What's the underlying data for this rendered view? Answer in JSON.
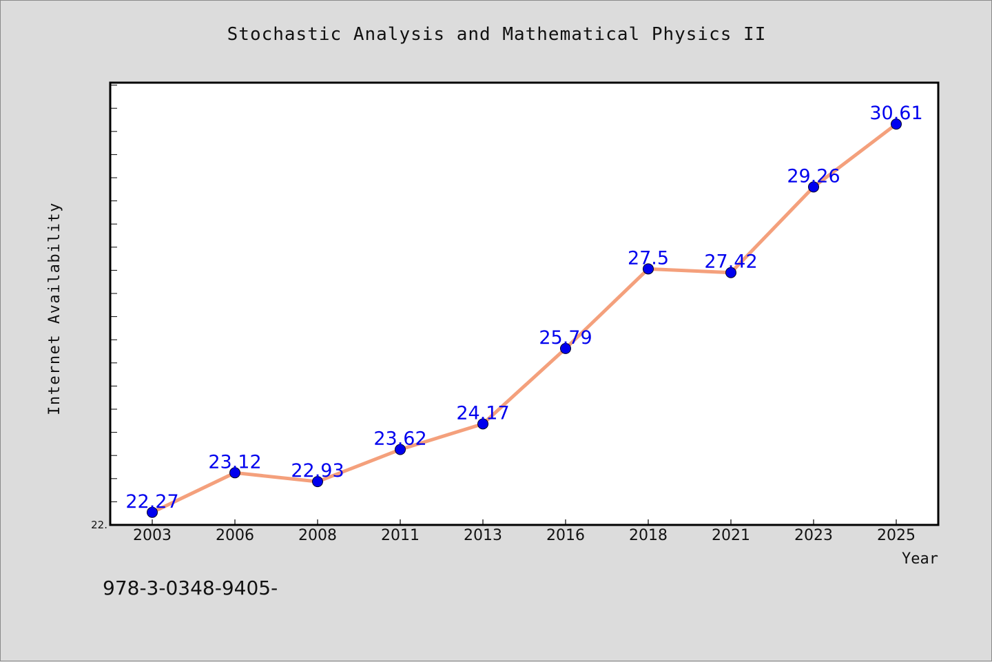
{
  "chart_data": {
    "type": "line",
    "title": "Stochastic Analysis and Mathematical Physics II",
    "xlabel": "Year",
    "ylabel": "Internet Availability",
    "categories": [
      "2003",
      "2006",
      "2008",
      "2011",
      "2013",
      "2016",
      "2018",
      "2021",
      "2023",
      "2025"
    ],
    "series": [
      {
        "values": [
          22.27,
          23.12,
          22.93,
          23.62,
          24.17,
          25.79,
          27.5,
          27.42,
          29.26,
          30.61
        ],
        "data_labels": [
          "22.27",
          "23.12",
          "22.93",
          "23.62",
          "24.17",
          "25.79",
          "27.5",
          "27.42",
          "29.26",
          "30.61"
        ],
        "line_color": "#f4a07c",
        "marker_color": "#0000ee"
      }
    ],
    "ylim": [
      22.0,
      31.5
    ],
    "y_tick_labels": [
      "22."
    ],
    "grid": false,
    "label_color": "#0000ee"
  },
  "footer": {
    "isbn": "978-3-0348-9405-"
  }
}
